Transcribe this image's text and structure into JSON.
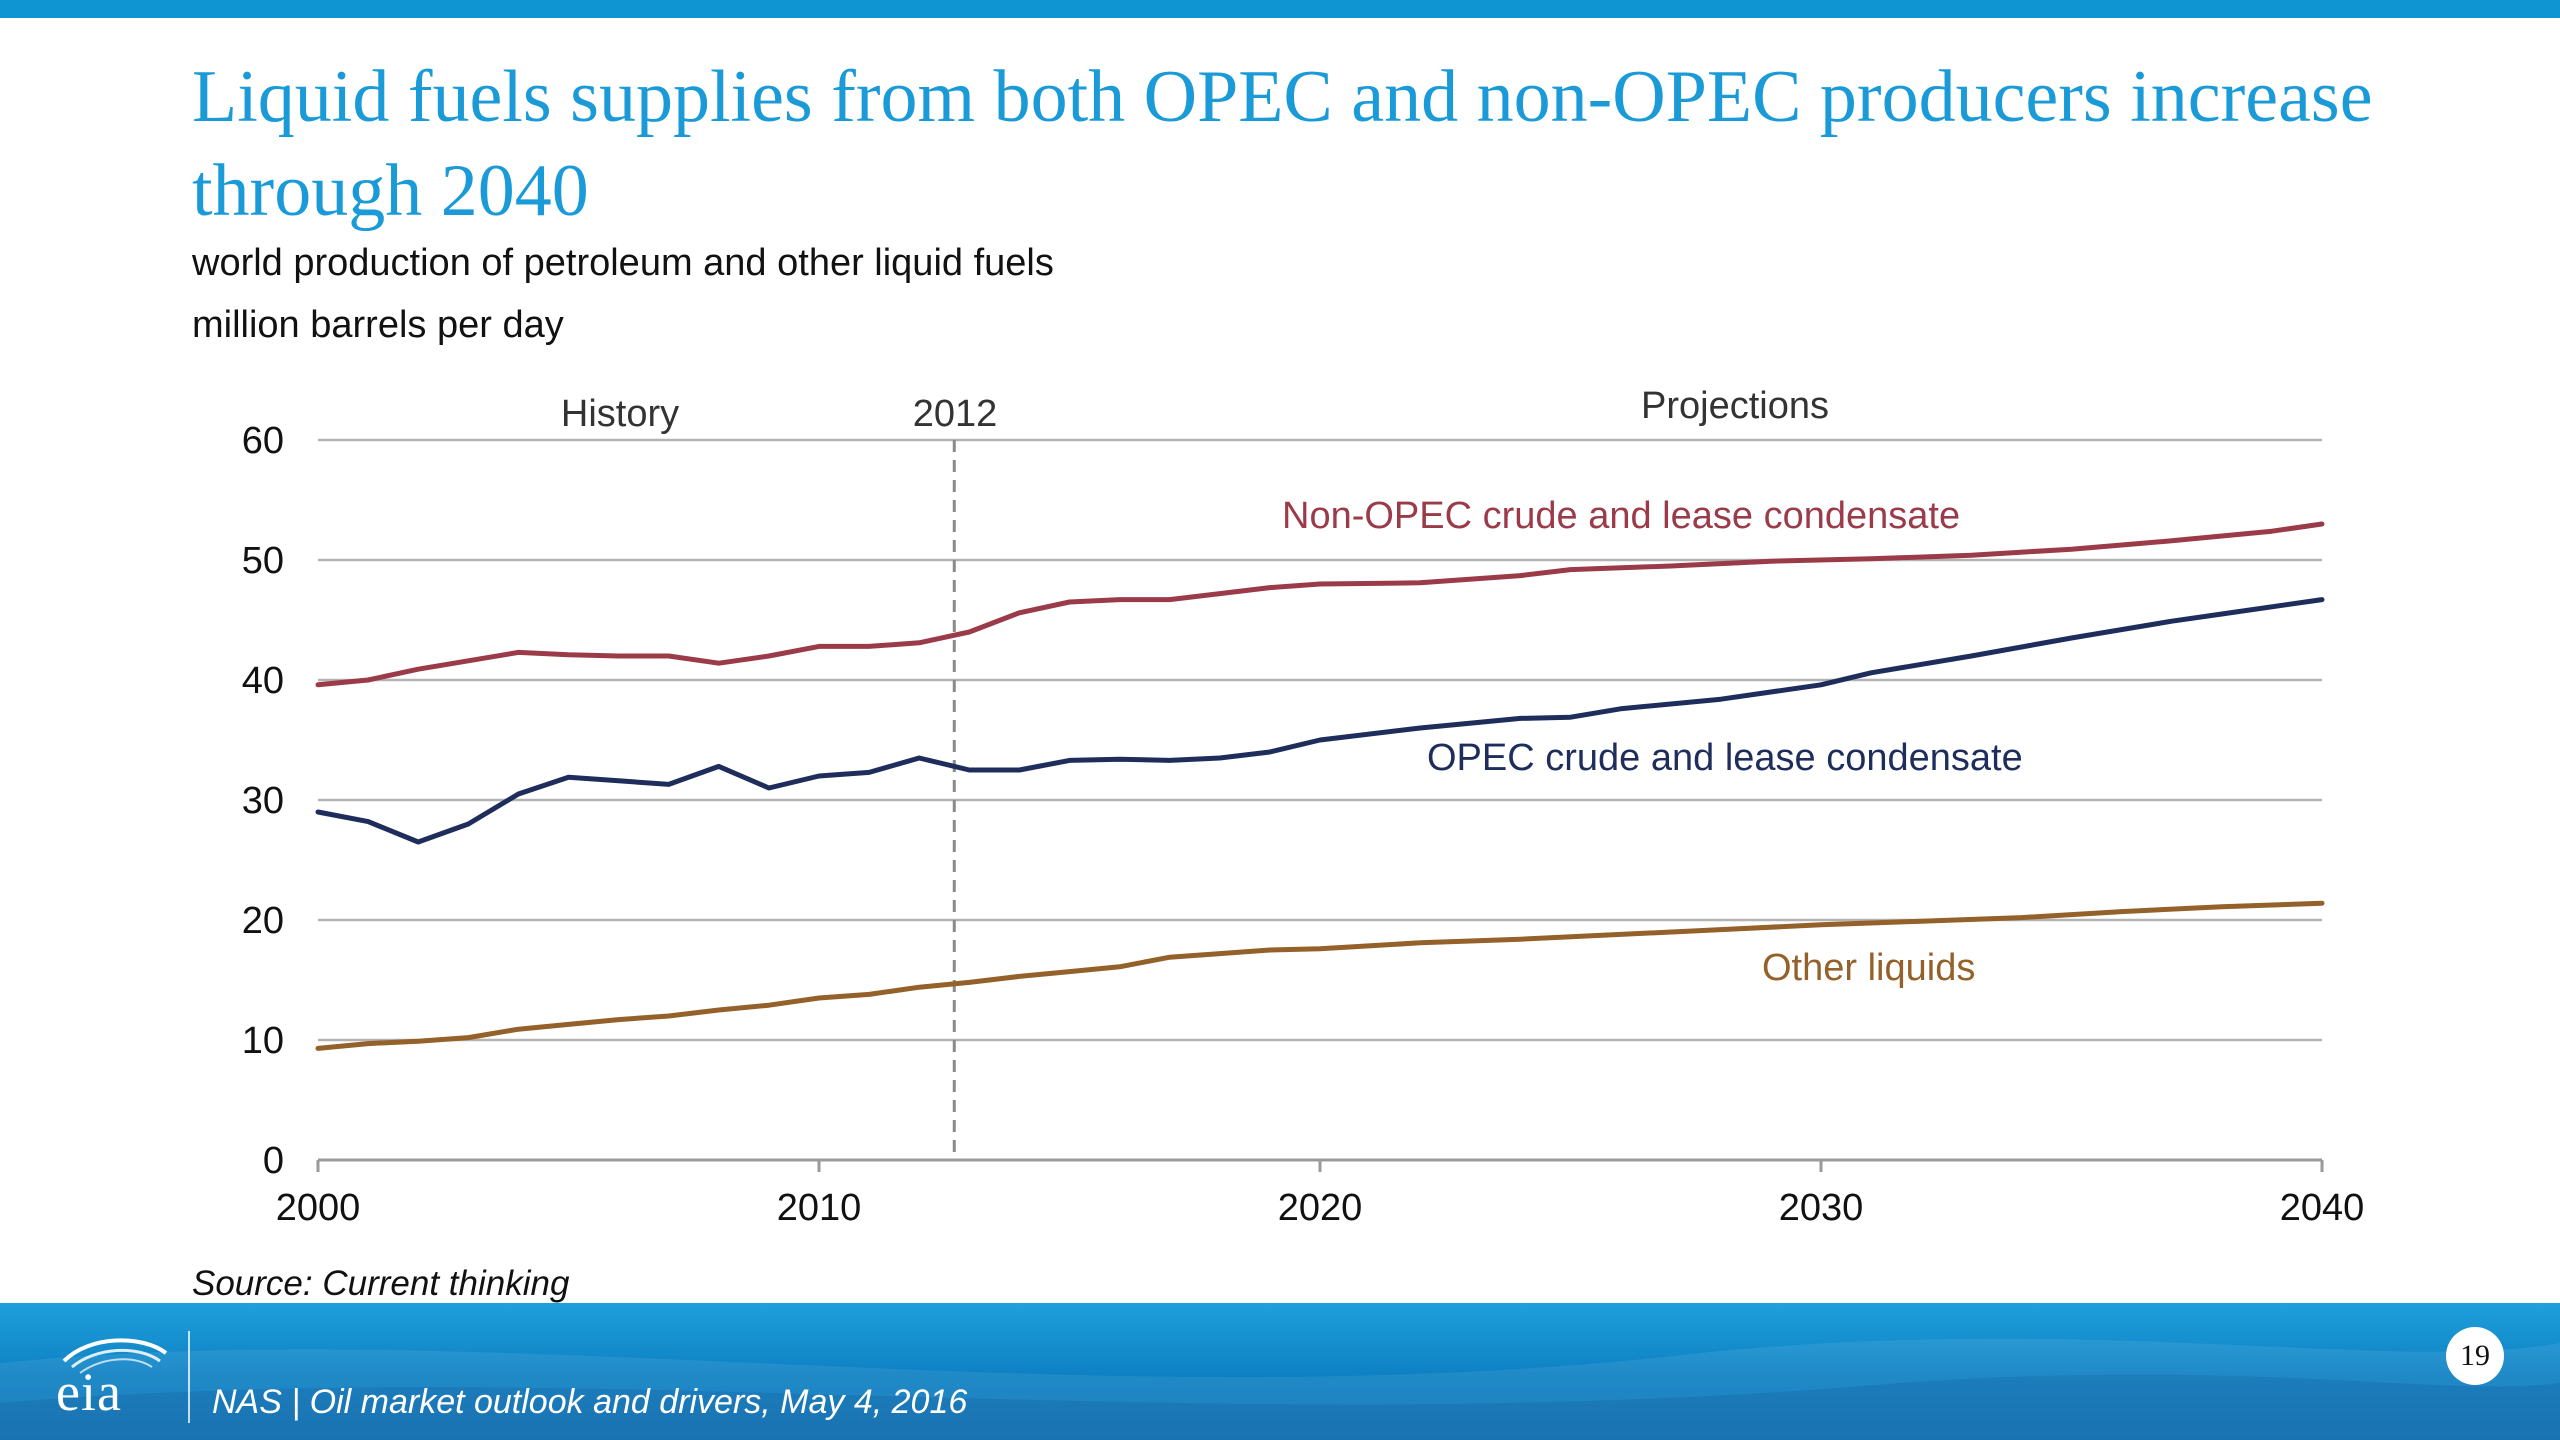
{
  "slide": {
    "title": "Liquid fuels supplies from both OPEC and non-OPEC producers increase through 2040",
    "subtitle_line1": "world production of petroleum and other liquid fuels",
    "subtitle_line2": "million barrels per day",
    "source": "Source: Current thinking"
  },
  "footer": {
    "logo_text": "eia",
    "text": "NAS | Oil market outlook and drivers, May 4, 2016",
    "page_number": "19"
  },
  "colors": {
    "title": "#1a9bd8",
    "non_opec": "#9b3b4a",
    "opec": "#1f2d5c",
    "other": "#94612a",
    "grid": "#b3b3b3",
    "footer_blue": "#0d7fc2"
  },
  "chart_data": {
    "type": "line",
    "xlim": [
      2000,
      2040
    ],
    "ylim": [
      0,
      60
    ],
    "xticks": [
      "2000",
      "2010",
      "2020",
      "2030",
      "2040"
    ],
    "yticks": [
      "0",
      "10",
      "20",
      "30",
      "40",
      "50",
      "60"
    ],
    "grid": true,
    "divider_year": 2012.7,
    "annotations": {
      "history": "History",
      "year": "2012",
      "projections": "Projections"
    },
    "series": [
      {
        "name": "Non-OPEC crude and lease condensate",
        "color": "#9b3b4a",
        "points": [
          [
            2000,
            39.6
          ],
          [
            2001,
            40.0
          ],
          [
            2002,
            40.9
          ],
          [
            2003,
            41.6
          ],
          [
            2004,
            42.3
          ],
          [
            2005,
            42.1
          ],
          [
            2006,
            42.0
          ],
          [
            2007,
            42.0
          ],
          [
            2008,
            41.4
          ],
          [
            2009,
            42.0
          ],
          [
            2010,
            42.8
          ],
          [
            2011,
            42.8
          ],
          [
            2012,
            43.1
          ],
          [
            2013,
            44.0
          ],
          [
            2014,
            45.6
          ],
          [
            2015,
            46.5
          ],
          [
            2016,
            46.7
          ],
          [
            2017,
            46.7
          ],
          [
            2018,
            47.2
          ],
          [
            2019,
            47.7
          ],
          [
            2020,
            48.0
          ],
          [
            2022,
            48.1
          ],
          [
            2024,
            48.7
          ],
          [
            2025,
            49.2
          ],
          [
            2027,
            49.5
          ],
          [
            2029,
            49.9
          ],
          [
            2031,
            50.1
          ],
          [
            2033,
            50.4
          ],
          [
            2035,
            50.9
          ],
          [
            2037,
            51.6
          ],
          [
            2039,
            52.4
          ],
          [
            2040,
            53.0
          ]
        ]
      },
      {
        "name": "OPEC crude and lease condensate",
        "color": "#1f2d5c",
        "points": [
          [
            2000,
            29.0
          ],
          [
            2001,
            28.2
          ],
          [
            2002,
            26.5
          ],
          [
            2003,
            28.0
          ],
          [
            2004,
            30.5
          ],
          [
            2005,
            31.9
          ],
          [
            2006,
            31.6
          ],
          [
            2007,
            31.3
          ],
          [
            2008,
            32.8
          ],
          [
            2009,
            31.0
          ],
          [
            2010,
            32.0
          ],
          [
            2011,
            32.3
          ],
          [
            2012,
            33.5
          ],
          [
            2013,
            32.5
          ],
          [
            2014,
            32.5
          ],
          [
            2015,
            33.3
          ],
          [
            2016,
            33.4
          ],
          [
            2017,
            33.3
          ],
          [
            2018,
            33.5
          ],
          [
            2019,
            34.0
          ],
          [
            2020,
            35.0
          ],
          [
            2022,
            36.0
          ],
          [
            2024,
            36.8
          ],
          [
            2025,
            36.9
          ],
          [
            2026,
            37.6
          ],
          [
            2028,
            38.4
          ],
          [
            2030,
            39.6
          ],
          [
            2031,
            40.6
          ],
          [
            2033,
            42.0
          ],
          [
            2035,
            43.5
          ],
          [
            2037,
            44.9
          ],
          [
            2038,
            45.5
          ],
          [
            2040,
            46.7
          ]
        ]
      },
      {
        "name": "Other liquids",
        "color": "#94612a",
        "points": [
          [
            2000,
            9.3
          ],
          [
            2001,
            9.7
          ],
          [
            2002,
            9.9
          ],
          [
            2003,
            10.2
          ],
          [
            2004,
            10.9
          ],
          [
            2005,
            11.3
          ],
          [
            2006,
            11.7
          ],
          [
            2007,
            12.0
          ],
          [
            2008,
            12.5
          ],
          [
            2009,
            12.9
          ],
          [
            2010,
            13.5
          ],
          [
            2011,
            13.8
          ],
          [
            2012,
            14.4
          ],
          [
            2013,
            14.8
          ],
          [
            2014,
            15.3
          ],
          [
            2015,
            15.7
          ],
          [
            2016,
            16.1
          ],
          [
            2017,
            16.9
          ],
          [
            2018,
            17.2
          ],
          [
            2019,
            17.5
          ],
          [
            2020,
            17.6
          ],
          [
            2022,
            18.1
          ],
          [
            2024,
            18.4
          ],
          [
            2026,
            18.8
          ],
          [
            2028,
            19.2
          ],
          [
            2030,
            19.6
          ],
          [
            2032,
            19.9
          ],
          [
            2034,
            20.2
          ],
          [
            2036,
            20.7
          ],
          [
            2038,
            21.1
          ],
          [
            2040,
            21.4
          ]
        ]
      }
    ]
  }
}
